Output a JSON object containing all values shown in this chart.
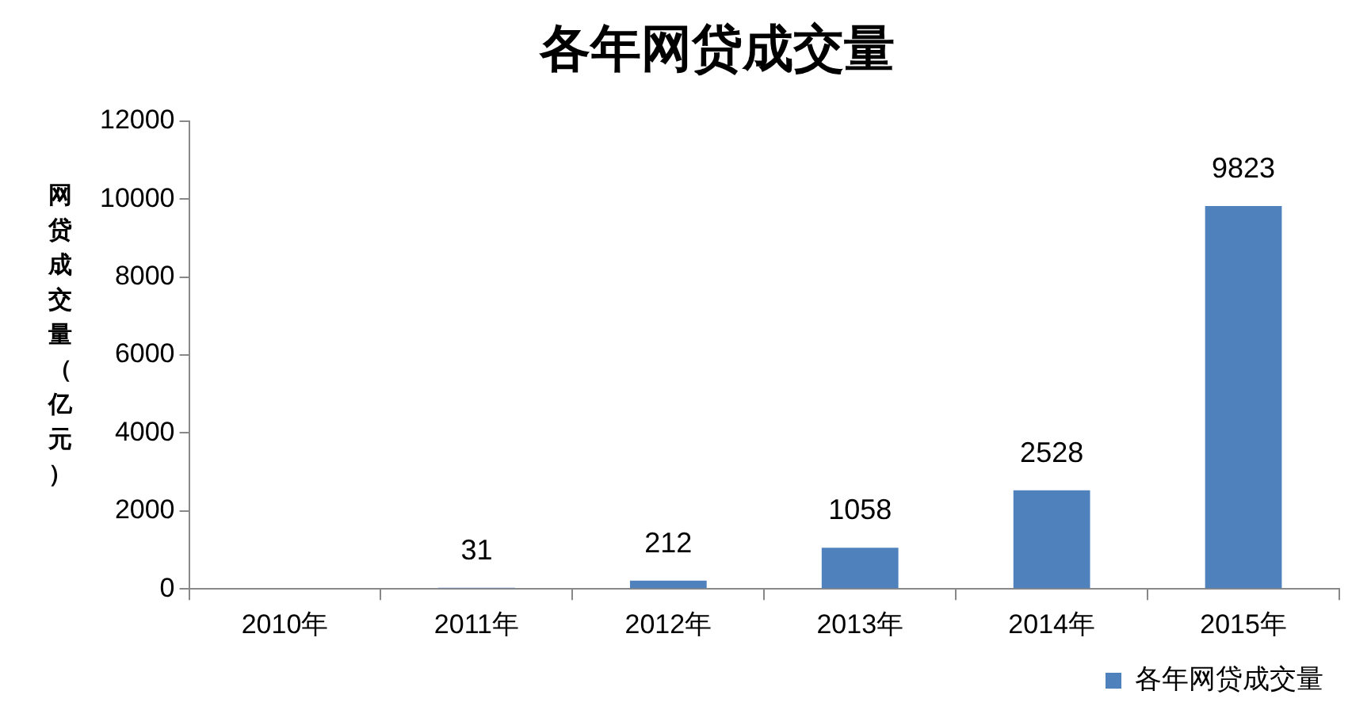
{
  "chart_data": {
    "type": "bar",
    "title": "各年网贷成交量",
    "ylabel": "网贷成交量（亿元）",
    "categories": [
      "2010年",
      "2011年",
      "2012年",
      "2013年",
      "2014年",
      "2015年"
    ],
    "series": [
      {
        "name": "各年网贷成交量",
        "color": "#4f81bd",
        "values": [
          null,
          31,
          212,
          1058,
          2528,
          9823
        ],
        "value_labels": [
          null,
          "31",
          "212",
          "1058",
          "2528",
          "9823"
        ]
      }
    ],
    "ylim": [
      0,
      12000
    ],
    "yticks": [
      0,
      2000,
      4000,
      6000,
      8000,
      10000,
      12000
    ],
    "grid": false,
    "legend": "bottom right"
  }
}
